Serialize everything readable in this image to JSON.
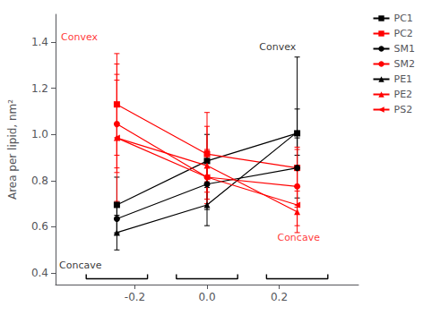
{
  "chart_data": {
    "type": "line",
    "ylabel": "Area per lipid, nm²",
    "x": [
      -0.25,
      0.0,
      0.25
    ],
    "series": [
      {
        "name": "PC1",
        "color": "black",
        "marker": "square",
        "values": [
          0.695,
          0.885,
          1.005
        ],
        "yerr_lo": [
          0.12,
          0.115,
          0.14
        ],
        "yerr_hi": [
          0.12,
          0.115,
          0.33
        ]
      },
      {
        "name": "PC2",
        "color": "red",
        "marker": "square",
        "values": [
          1.13,
          0.915,
          0.855
        ],
        "yerr_lo": [
          0.22,
          0.12,
          0.08
        ],
        "yerr_hi": [
          0.22,
          0.12,
          0.08
        ]
      },
      {
        "name": "SM1",
        "color": "black",
        "marker": "circle",
        "values": [
          0.635,
          0.785,
          0.855
        ],
        "yerr_lo": [
          0.065,
          0.11,
          0.13
        ],
        "yerr_hi": [
          0.065,
          0.11,
          0.13
        ]
      },
      {
        "name": "SM2",
        "color": "red",
        "marker": "circle",
        "values": [
          1.045,
          0.815,
          0.775
        ],
        "yerr_lo": [
          0.19,
          0.095,
          0.09
        ],
        "yerr_hi": [
          0.19,
          0.12,
          0.09
        ]
      },
      {
        "name": "PE1",
        "color": "black",
        "marker": "triangle-up",
        "values": [
          0.575,
          0.695,
          1.01
        ],
        "yerr_lo": [
          0.075,
          0.09,
          0.1
        ],
        "yerr_hi": [
          0.075,
          0.09,
          0.1
        ]
      },
      {
        "name": "PE2",
        "color": "red",
        "marker": "triangle-up",
        "values": [
          0.985,
          0.865,
          0.665
        ],
        "yerr_lo": [
          0.15,
          0.115,
          0.09
        ],
        "yerr_hi": [
          0.32,
          0.23,
          0.09
        ]
      },
      {
        "name": "PS2",
        "color": "red",
        "marker": "triangle-left",
        "values": [
          0.985,
          0.815,
          0.695
        ],
        "yerr_lo": [
          0.275,
          0.115,
          0.09
        ],
        "yerr_hi": [
          0.275,
          0.115,
          0.25
        ]
      }
    ],
    "xlim": [
      -0.42,
      0.42
    ],
    "xticks": [
      -0.2,
      {
        "value": 0.0,
        "label": "0.0"
      },
      0.2
    ],
    "ylim": [
      0.35,
      1.52
    ],
    "yticks": [
      0.4,
      0.6,
      0.8,
      {
        "value": 1.0,
        "label": "1.0"
      },
      1.2,
      1.4
    ],
    "grid": false,
    "legend": "upper right",
    "annotations": [
      {
        "text": "Convex",
        "x": -0.405,
        "y": 1.42,
        "color": "red"
      },
      {
        "text": "Concave",
        "x": -0.41,
        "y": 0.435,
        "color": "black"
      },
      {
        "text": "Convex",
        "x": 0.145,
        "y": 1.38,
        "color": "black"
      },
      {
        "text": "Concave",
        "x": 0.195,
        "y": 0.555,
        "color": "red"
      }
    ],
    "brackets": {
      "centers": [
        -0.25,
        0.0,
        0.25
      ],
      "half_width": 0.085,
      "bottom": 0.375,
      "top": 0.395,
      "color": "black"
    }
  }
}
